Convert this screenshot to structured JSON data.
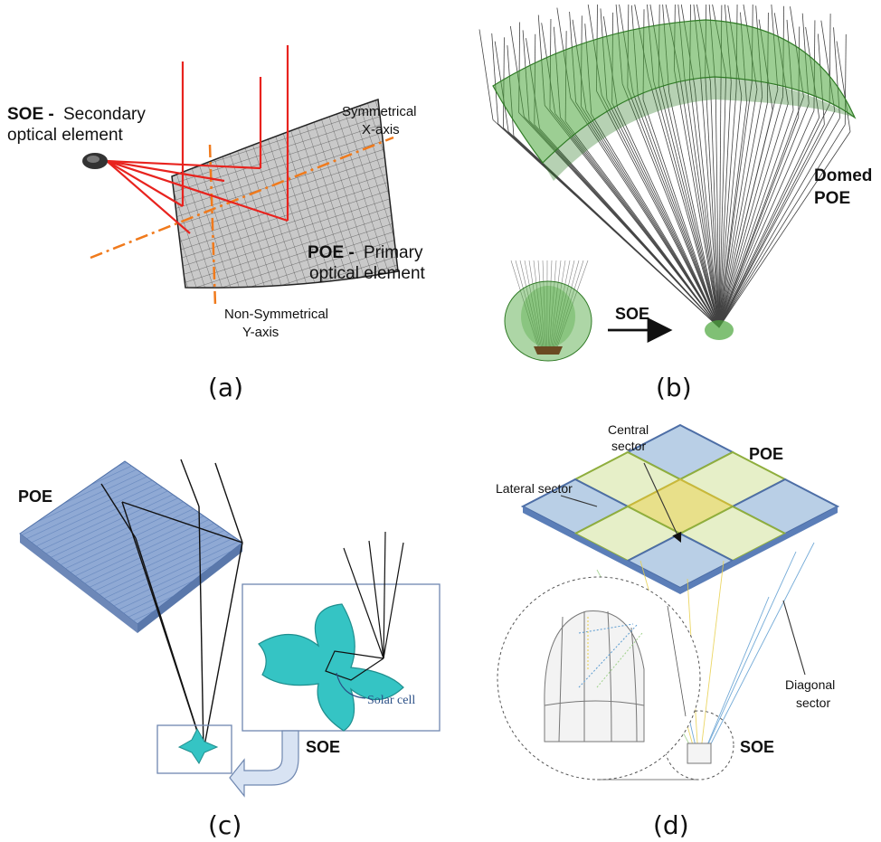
{
  "panel_a": {
    "soe_label": "SOE -",
    "soe_desc_1": "Secondary",
    "soe_desc_2": "optical element",
    "x_axis_1": "Symmetrical",
    "x_axis_2": "X-axis",
    "poe_label": "POE -",
    "poe_desc_1": "Primary",
    "poe_desc_2": "optical element",
    "y_axis_1": "Non-Symmetrical",
    "y_axis_2": "Y-axis",
    "caption": "(a)"
  },
  "panel_b": {
    "domed_1": "Domed",
    "domed_2": "POE",
    "soe_label": "SOE",
    "caption": "(b)"
  },
  "panel_c": {
    "poe_label": "POE",
    "solar_cell": "Solar cell",
    "soe_label": "SOE",
    "caption": "(c)"
  },
  "panel_d": {
    "central_1": "Central",
    "central_2": "sector",
    "poe_label": "POE",
    "lateral": "Lateral sector",
    "diagonal_1": "Diagonal",
    "diagonal_2": "sector",
    "soe_label": "SOE",
    "caption": "(d)"
  },
  "colors": {
    "ray_red": "#e8231e",
    "axis_orange": "#f07a1c",
    "dome_green": "#4aa53a",
    "fresnel_blue": "#7f9fcf",
    "soe_cyan": "#35c4c4",
    "sector_yellow": "#e8e08a",
    "sector_blue": "#b9cfe6"
  }
}
